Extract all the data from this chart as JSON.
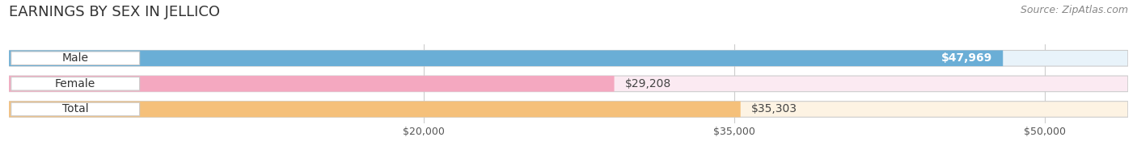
{
  "title": "EARNINGS BY SEX IN JELLICO",
  "source": "Source: ZipAtlas.com",
  "categories": [
    "Male",
    "Female",
    "Total"
  ],
  "values": [
    47969,
    29208,
    35303
  ],
  "bar_colors": [
    "#6aaed6",
    "#f4a8c0",
    "#f5c07a"
  ],
  "bar_bg_colors": [
    "#e8f3fa",
    "#fbeaf2",
    "#fdf3e3"
  ],
  "value_labels": [
    "$47,969",
    "$29,208",
    "$35,303"
  ],
  "value_inside": [
    true,
    false,
    false
  ],
  "xlim_min": 0,
  "xlim_max": 54000,
  "xticks": [
    20000,
    35000,
    50000
  ],
  "xtick_labels": [
    "$20,000",
    "$35,000",
    "$50,000"
  ],
  "bg_color": "#ffffff",
  "plot_bg_color": "#f0f0f0",
  "title_fontsize": 13,
  "bar_label_fontsize": 10,
  "value_fontsize": 10,
  "source_fontsize": 9,
  "tick_fontsize": 9,
  "bar_height": 0.62,
  "bar_spacing": 1.0,
  "rounding_size": 0.3
}
